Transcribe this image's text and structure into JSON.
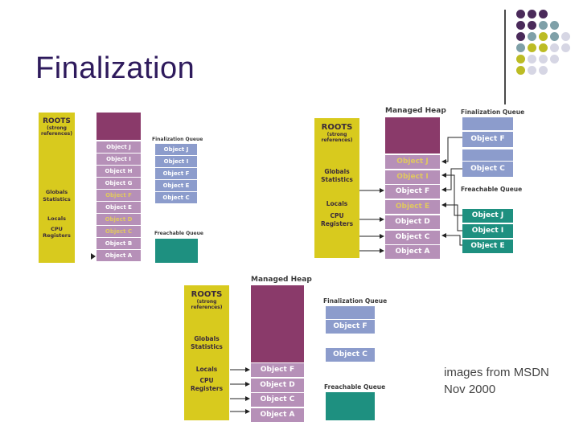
{
  "title": "Finalization",
  "caption": [
    "images from MSDN",
    "Nov 2000"
  ],
  "decoration": {
    "colors": [
      "#4a2a5a",
      "#7fa0a8",
      "#bcbc24",
      "#d6d6e4"
    ]
  },
  "diagram1": {
    "roots_title": "ROOTS",
    "roots_sub": [
      "(strong",
      "references)"
    ],
    "globals": [
      "Globals",
      "Statistics"
    ],
    "locals": "Locals",
    "cpu": [
      "CPU",
      "Registers"
    ],
    "heap_objects": [
      "Object J",
      "Object I",
      "Object H",
      "Object G",
      "Object F",
      "Object E",
      "Object D",
      "Object C",
      "Object B",
      "Object A"
    ],
    "finalization_queue_label": "Finalization Queue",
    "finalization_queue": [
      "Object J",
      "Object I",
      "Object F",
      "Object E",
      "Object C"
    ],
    "freachable_label": "Freachable Queue"
  },
  "diagram2": {
    "heap_label": "Managed Heap",
    "roots_title": "ROOTS",
    "roots_sub": [
      "(strong",
      "references)"
    ],
    "globals": [
      "Globals",
      "Statistics"
    ],
    "locals": "Locals",
    "cpu": [
      "CPU",
      "Registers"
    ],
    "heap_objects": [
      "Object J",
      "Object I",
      "Object F",
      "Object E",
      "Object D",
      "Object C",
      "Object A"
    ],
    "finalization_queue_label": "Finalization Queue",
    "finalization_queue": [
      "Object F",
      "Object C"
    ],
    "freachable_label": "Freachable Queue",
    "freachable_queue": [
      "Object J",
      "Object I",
      "Object E"
    ]
  },
  "diagram3": {
    "heap_label": "Managed Heap",
    "roots_title": "ROOTS",
    "roots_sub": [
      "(strong",
      "references)"
    ],
    "globals": [
      "Globals",
      "Statistics"
    ],
    "locals": "Locals",
    "cpu": [
      "CPU",
      "Registers"
    ],
    "heap_objects": [
      "Object F",
      "Object D",
      "Object C",
      "Object A"
    ],
    "finalization_queue_label": "Finalization Queue",
    "finalization_queue": [
      "Object F",
      "Object C"
    ],
    "freachable_label": "Freachable Queue"
  }
}
